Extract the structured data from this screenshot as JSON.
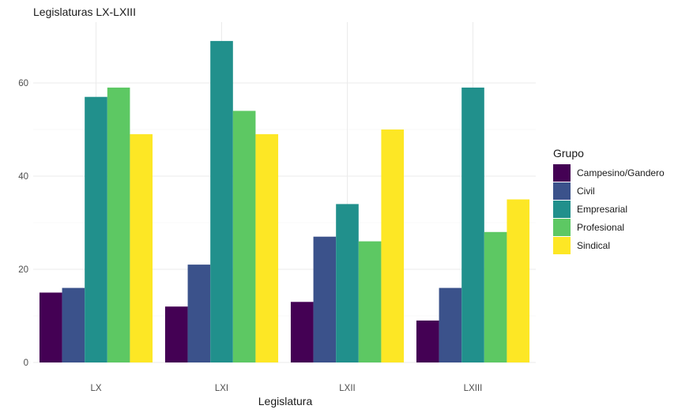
{
  "chart_data": {
    "type": "bar",
    "subtitle": "Legislaturas LX-LXIII",
    "xlabel": "Legislatura",
    "ylabel": "",
    "categories": [
      "LX",
      "LXI",
      "LXII",
      "LXIII"
    ],
    "ylim": [
      0,
      70
    ],
    "yticks": [
      0,
      20,
      40,
      60
    ],
    "grid": true,
    "legend": {
      "title": "Grupo",
      "position": "right"
    },
    "series": [
      {
        "name": "Campesino/Gandero",
        "color": "#440154",
        "values": [
          15,
          12,
          13,
          9
        ]
      },
      {
        "name": "Civil",
        "color": "#3B528B",
        "values": [
          16,
          21,
          27,
          16
        ]
      },
      {
        "name": "Empresarial",
        "color": "#21908C",
        "values": [
          57,
          69,
          34,
          59
        ]
      },
      {
        "name": "Profesional",
        "color": "#5DC863",
        "values": [
          59,
          54,
          26,
          28
        ]
      },
      {
        "name": "Sindical",
        "color": "#FDE725",
        "values": [
          49,
          49,
          50,
          35
        ]
      }
    ]
  }
}
